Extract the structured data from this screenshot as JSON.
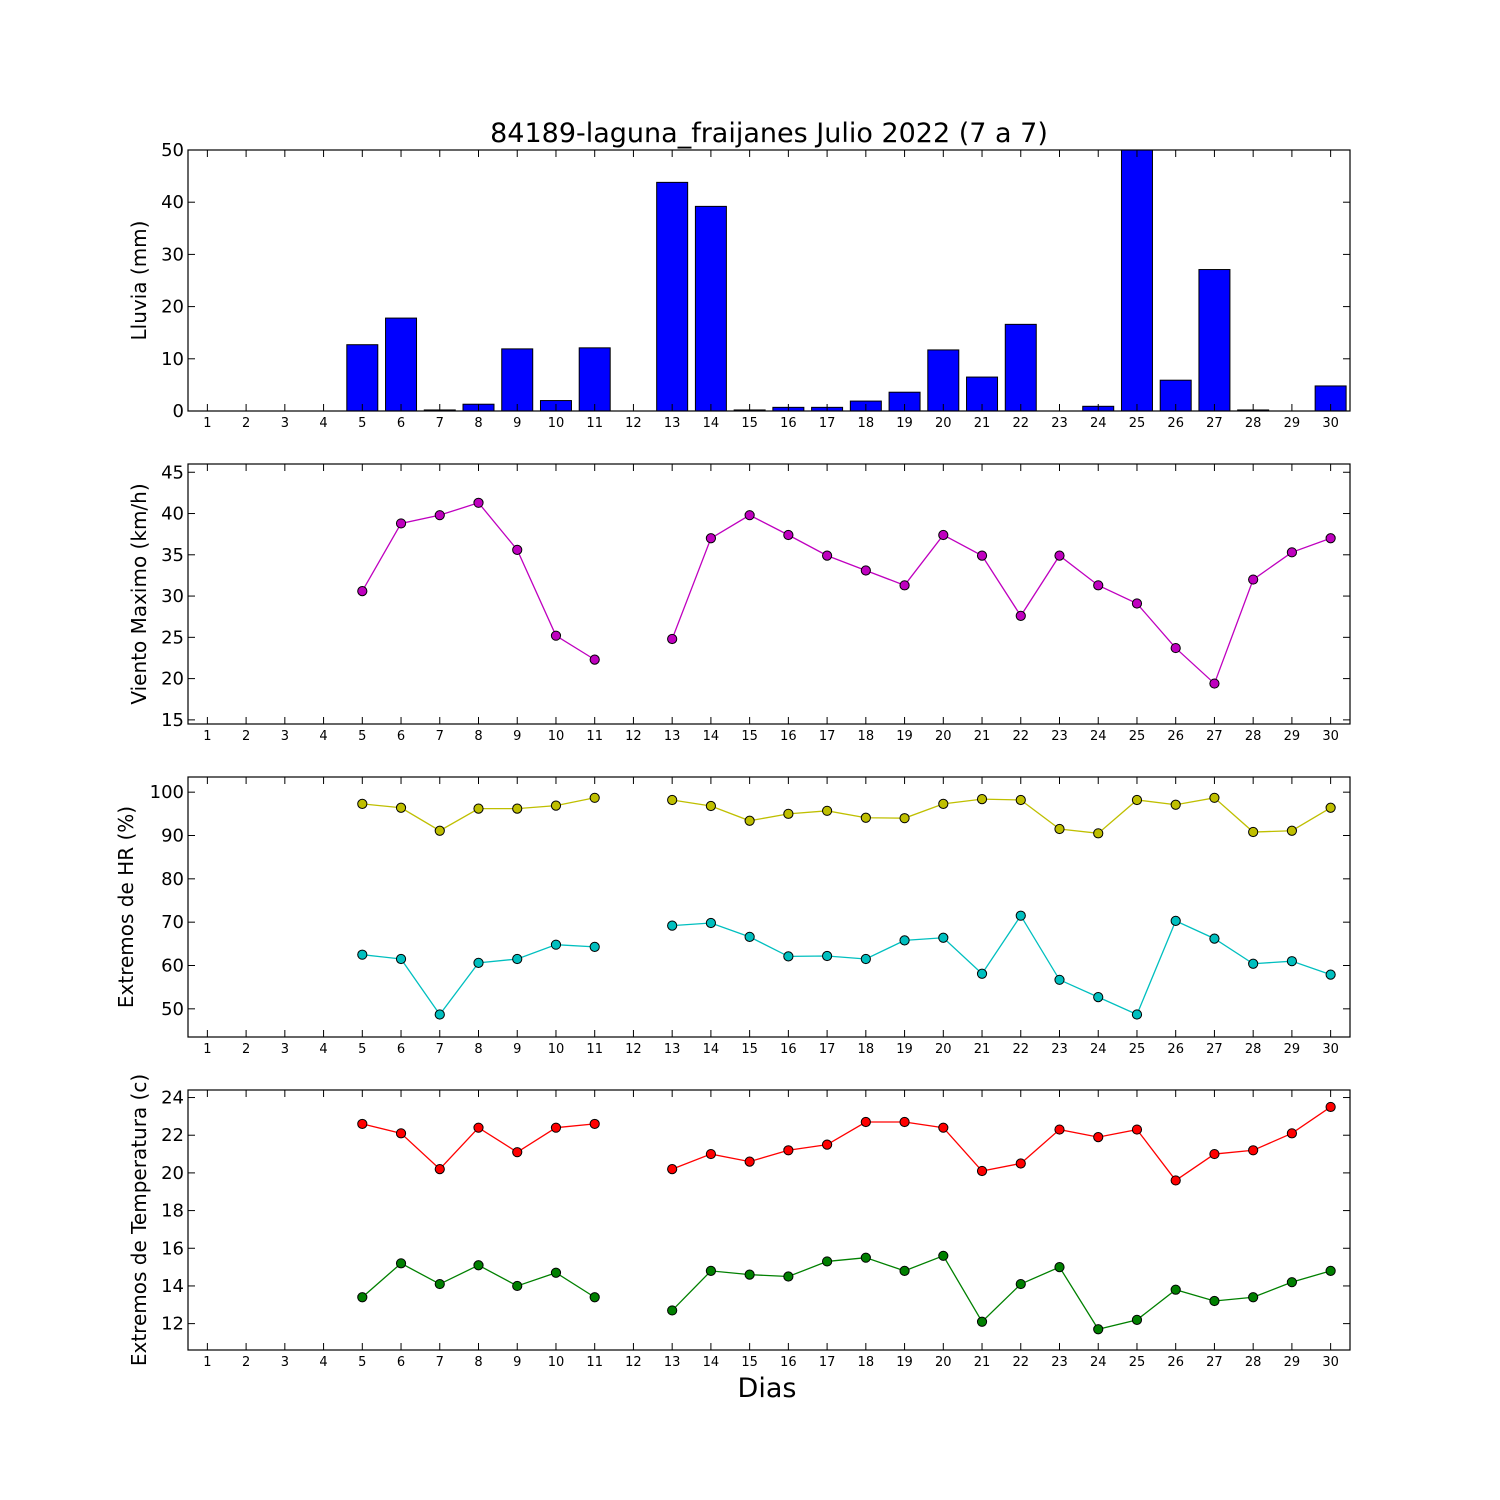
{
  "chart_data": {
    "title": "84189-laguna_fraijanes Julio 2022  (7 a 7)",
    "xlabel": "Dias",
    "days": [
      1,
      2,
      3,
      4,
      5,
      6,
      7,
      8,
      9,
      10,
      11,
      12,
      13,
      14,
      15,
      16,
      17,
      18,
      19,
      20,
      21,
      22,
      23,
      24,
      25,
      26,
      27,
      28,
      29,
      30
    ],
    "panels": [
      {
        "type": "bar",
        "ylabel": "Lluvia (mm)",
        "ylim": [
          0,
          50
        ],
        "yticks": [
          0,
          10,
          20,
          30,
          40,
          50
        ],
        "grid": false,
        "series": [
          {
            "color": "#0000ff",
            "values": [
              0,
              0,
              0,
              0,
              12.7,
              17.8,
              0.2,
              1.3,
              11.9,
              2.0,
              12.1,
              0,
              43.8,
              39.2,
              0.2,
              0.7,
              0.7,
              1.9,
              3.6,
              11.7,
              6.5,
              16.6,
              0,
              0.9,
              50.0,
              5.9,
              27.1,
              0.2,
              0,
              4.8
            ]
          }
        ]
      },
      {
        "type": "line",
        "ylabel": "Viento Maximo (km/h)",
        "ylim": [
          14.5,
          46
        ],
        "yticks": [
          15,
          20,
          25,
          30,
          35,
          40,
          45
        ],
        "grid": false,
        "series": [
          {
            "color": "#bf00bf",
            "values": [
              null,
              null,
              null,
              null,
              30.6,
              38.8,
              39.8,
              41.3,
              35.6,
              25.2,
              22.3,
              null,
              24.8,
              37.0,
              39.8,
              37.4,
              34.9,
              33.1,
              31.3,
              37.4,
              34.9,
              27.6,
              34.9,
              31.3,
              29.1,
              23.7,
              19.4,
              32.0,
              35.3,
              37.0
            ]
          }
        ]
      },
      {
        "type": "line",
        "ylabel": "Extremos de HR (%)",
        "ylim": [
          43.5,
          103.5
        ],
        "yticks": [
          50,
          60,
          70,
          80,
          90,
          100
        ],
        "grid": false,
        "series": [
          {
            "color": "#bfbf00",
            "values": [
              null,
              null,
              null,
              null,
              97.3,
              96.4,
              91.1,
              96.2,
              96.2,
              96.9,
              98.7,
              null,
              98.2,
              96.8,
              93.4,
              95.0,
              95.7,
              94.1,
              94.0,
              97.3,
              98.4,
              98.2,
              91.5,
              90.5,
              98.2,
              97.1,
              98.7,
              90.8,
              91.1,
              96.4
            ]
          },
          {
            "color": "#00bfbf",
            "values": [
              null,
              null,
              null,
              null,
              62.5,
              61.5,
              48.7,
              60.6,
              61.5,
              64.8,
              64.3,
              null,
              69.2,
              69.8,
              66.6,
              62.1,
              62.2,
              61.5,
              65.8,
              66.4,
              58.1,
              71.5,
              56.7,
              52.7,
              48.7,
              70.3,
              66.2,
              60.4,
              61.0,
              57.9
            ]
          }
        ]
      },
      {
        "type": "line",
        "ylabel": "Extremos de Temperatura (c)",
        "ylim": [
          10.6,
          24.4
        ],
        "yticks": [
          12,
          14,
          16,
          18,
          20,
          22,
          24
        ],
        "grid": false,
        "series": [
          {
            "color": "#ff0000",
            "values": [
              null,
              null,
              null,
              null,
              22.6,
              22.1,
              20.2,
              22.4,
              21.1,
              22.4,
              22.6,
              null,
              20.2,
              21.0,
              20.6,
              21.2,
              21.5,
              22.7,
              22.7,
              22.4,
              20.1,
              20.5,
              22.3,
              21.9,
              22.3,
              19.6,
              21.0,
              21.2,
              22.1,
              23.5
            ]
          },
          {
            "color": "#008000",
            "values": [
              null,
              null,
              null,
              null,
              13.4,
              15.2,
              14.1,
              15.1,
              14.0,
              14.7,
              13.4,
              null,
              12.7,
              14.8,
              14.6,
              14.5,
              15.3,
              15.5,
              14.8,
              15.6,
              12.1,
              14.1,
              15.0,
              11.7,
              12.2,
              13.8,
              13.2,
              13.4,
              14.2,
              14.8
            ]
          }
        ]
      }
    ]
  }
}
